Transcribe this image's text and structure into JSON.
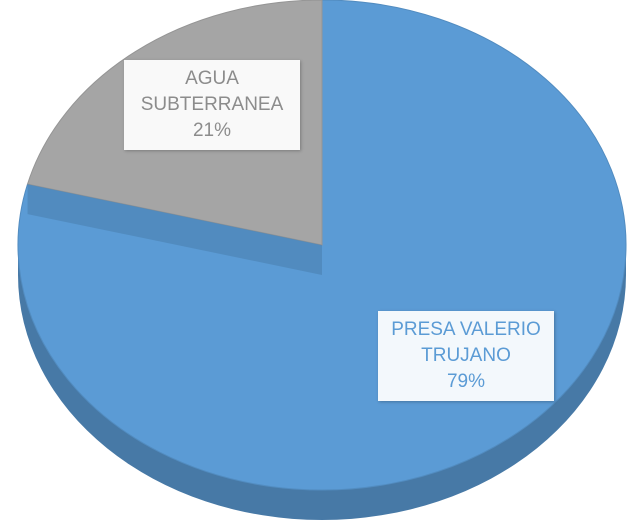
{
  "chart_data": {
    "type": "pie",
    "categories": [
      "PRESA VALERIO TRUJANO",
      "AGUA SUBTERRANEA"
    ],
    "values": [
      79,
      21
    ],
    "value_labels": [
      "79%",
      "21%"
    ],
    "colors": [
      "#5b9bd5",
      "#a5a5a5"
    ]
  }
}
